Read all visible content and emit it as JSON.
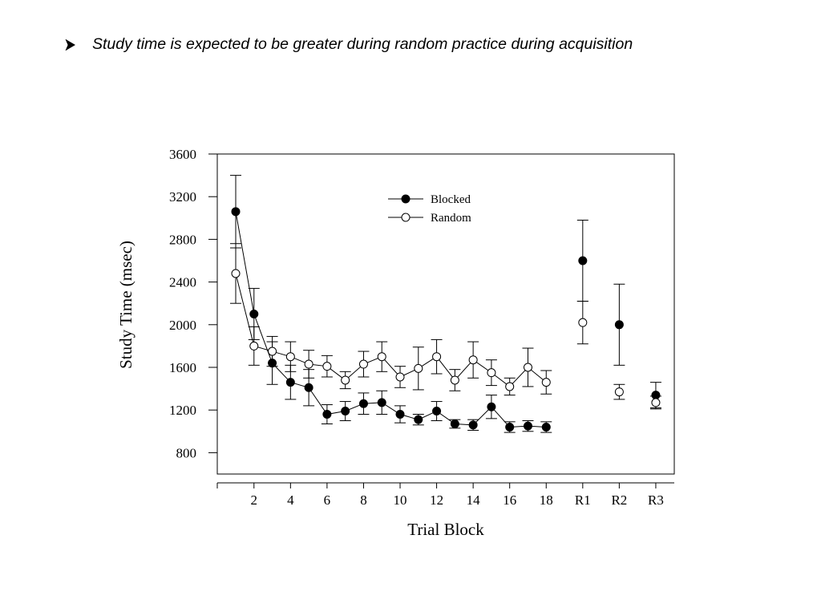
{
  "slide": {
    "bullet_text": "Study time is expected to be greater during random practice during acquisition"
  },
  "chart_data": {
    "type": "scatter",
    "title": "",
    "xlabel": "Trial Block",
    "ylabel": "Study Time (msec)",
    "ylim": [
      600,
      3600
    ],
    "y_ticks": [
      800,
      1200,
      1600,
      2000,
      2400,
      2800,
      3200,
      3600
    ],
    "x_ticks": [
      "2",
      "4",
      "6",
      "8",
      "10",
      "12",
      "14",
      "16",
      "18",
      "R1",
      "R2",
      "R3"
    ],
    "x_categories": [
      "1",
      "2",
      "3",
      "4",
      "5",
      "6",
      "7",
      "8",
      "9",
      "10",
      "11",
      "12",
      "13",
      "14",
      "15",
      "16",
      "17",
      "18",
      "R1",
      "R2",
      "R3"
    ],
    "grid": false,
    "legend_position": "top-center",
    "series": [
      {
        "name": "Blocked",
        "marker": "filled-circle",
        "color": "#000000",
        "values": [
          3060,
          2100,
          1640,
          1460,
          1410,
          1160,
          1190,
          1260,
          1270,
          1160,
          1110,
          1190,
          1070,
          1060,
          1230,
          1040,
          1050,
          1040,
          2600,
          2000,
          1340
        ],
        "error": [
          340,
          240,
          200,
          160,
          170,
          90,
          90,
          100,
          110,
          80,
          50,
          90,
          40,
          50,
          110,
          50,
          50,
          50,
          380,
          380,
          120
        ]
      },
      {
        "name": "Random",
        "marker": "open-circle",
        "color": "#000000",
        "values": [
          2480,
          1800,
          1750,
          1700,
          1630,
          1610,
          1480,
          1630,
          1700,
          1510,
          1590,
          1700,
          1480,
          1670,
          1550,
          1420,
          1600,
          1460,
          2020,
          1370,
          1270
        ],
        "error": [
          280,
          180,
          140,
          140,
          130,
          100,
          80,
          120,
          140,
          100,
          200,
          160,
          100,
          170,
          120,
          80,
          180,
          110,
          200,
          70,
          60
        ]
      }
    ],
    "connected_segments": [
      [
        0,
        17
      ]
    ]
  }
}
